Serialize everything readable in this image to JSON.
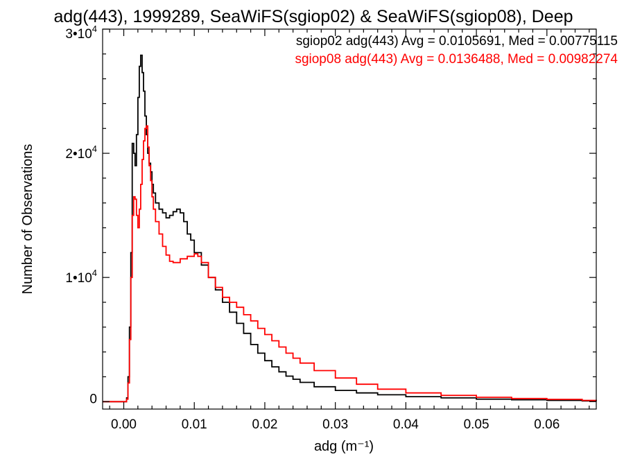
{
  "chart_data": {
    "type": "line",
    "title": "adg(443), 1999289, SeaWiFS(sgiop02) & SeaWiFS(sgiop08), Deep",
    "xlabel": "adg (m⁻¹)",
    "ylabel": "Number of Observations",
    "xlim": [
      -0.003,
      0.067
    ],
    "ylim": [
      -600,
      30000
    ],
    "x_ticks": [
      0,
      0.01,
      0.02,
      0.03,
      0.04,
      0.05,
      0.06
    ],
    "x_tick_labels": [
      "0.00",
      "0.01",
      "0.02",
      "0.03",
      "0.04",
      "0.05",
      "0.06"
    ],
    "y_ticks": [
      0,
      10000,
      20000,
      30000
    ],
    "y_tick_labels": [
      {
        "mant": "0",
        "exp": ""
      },
      {
        "mant": "1•10",
        "exp": "4"
      },
      {
        "mant": "2•10",
        "exp": "4"
      },
      {
        "mant": "3•10",
        "exp": "4"
      }
    ],
    "grid": false,
    "legend_position": "top-right",
    "series": [
      {
        "name": "sgiop02 adg(443) Avg = 0.0105691, Med = 0.00775115",
        "color": "#000000",
        "points": [
          [
            -0.003,
            0
          ],
          [
            0.0,
            0
          ],
          [
            0.0004,
            300
          ],
          [
            0.0006,
            2000
          ],
          [
            0.0008,
            6000
          ],
          [
            0.001,
            12000
          ],
          [
            0.0012,
            20800
          ],
          [
            0.0014,
            20000
          ],
          [
            0.0016,
            19000
          ],
          [
            0.0018,
            21500
          ],
          [
            0.002,
            24500
          ],
          [
            0.0022,
            27000
          ],
          [
            0.0024,
            27900
          ],
          [
            0.0026,
            26500
          ],
          [
            0.0028,
            25000
          ],
          [
            0.003,
            23000
          ],
          [
            0.0032,
            21500
          ],
          [
            0.0034,
            20000
          ],
          [
            0.0036,
            19200
          ],
          [
            0.0038,
            18500
          ],
          [
            0.004,
            17500
          ],
          [
            0.0042,
            16800
          ],
          [
            0.0045,
            16000
          ],
          [
            0.005,
            15500
          ],
          [
            0.0055,
            15200
          ],
          [
            0.006,
            14800
          ],
          [
            0.0065,
            15000
          ],
          [
            0.007,
            15300
          ],
          [
            0.0075,
            15500
          ],
          [
            0.008,
            15200
          ],
          [
            0.0085,
            14500
          ],
          [
            0.009,
            13500
          ],
          [
            0.0095,
            13000
          ],
          [
            0.01,
            12000
          ],
          [
            0.011,
            11000
          ],
          [
            0.012,
            10000
          ],
          [
            0.013,
            9000
          ],
          [
            0.014,
            8000
          ],
          [
            0.015,
            7200
          ],
          [
            0.016,
            6300
          ],
          [
            0.017,
            5500
          ],
          [
            0.018,
            4600
          ],
          [
            0.019,
            3900
          ],
          [
            0.02,
            3300
          ],
          [
            0.021,
            2800
          ],
          [
            0.022,
            2400
          ],
          [
            0.023,
            2050
          ],
          [
            0.024,
            1800
          ],
          [
            0.025,
            1550
          ],
          [
            0.027,
            1200
          ],
          [
            0.03,
            900
          ],
          [
            0.033,
            700
          ],
          [
            0.036,
            550
          ],
          [
            0.04,
            400
          ],
          [
            0.045,
            300
          ],
          [
            0.05,
            200
          ],
          [
            0.055,
            150
          ],
          [
            0.06,
            100
          ],
          [
            0.065,
            60
          ],
          [
            0.067,
            40
          ]
        ]
      },
      {
        "name": "sgiop08 adg(443) Avg = 0.0136488, Med = 0.00982274",
        "color": "#ff0000",
        "points": [
          [
            -0.003,
            0
          ],
          [
            0.0,
            0
          ],
          [
            0.0004,
            200
          ],
          [
            0.0006,
            1500
          ],
          [
            0.0008,
            5000
          ],
          [
            0.001,
            10000
          ],
          [
            0.0012,
            15000
          ],
          [
            0.0014,
            16500
          ],
          [
            0.0016,
            16300
          ],
          [
            0.0018,
            15000
          ],
          [
            0.002,
            14000
          ],
          [
            0.0022,
            15500
          ],
          [
            0.0024,
            17500
          ],
          [
            0.0026,
            19500
          ],
          [
            0.0028,
            21000
          ],
          [
            0.003,
            22000
          ],
          [
            0.0032,
            22200
          ],
          [
            0.0034,
            20500
          ],
          [
            0.0036,
            19000
          ],
          [
            0.0038,
            17800
          ],
          [
            0.004,
            16500
          ],
          [
            0.0042,
            15500
          ],
          [
            0.0045,
            14500
          ],
          [
            0.005,
            13500
          ],
          [
            0.0055,
            12500
          ],
          [
            0.006,
            11800
          ],
          [
            0.0065,
            11300
          ],
          [
            0.007,
            11200
          ],
          [
            0.008,
            11500
          ],
          [
            0.009,
            11700
          ],
          [
            0.01,
            11900
          ],
          [
            0.0105,
            11700
          ],
          [
            0.011,
            11200
          ],
          [
            0.012,
            10000
          ],
          [
            0.013,
            9200
          ],
          [
            0.014,
            8400
          ],
          [
            0.015,
            8000
          ],
          [
            0.016,
            7600
          ],
          [
            0.017,
            7000
          ],
          [
            0.018,
            6500
          ],
          [
            0.019,
            5900
          ],
          [
            0.02,
            5400
          ],
          [
            0.021,
            4900
          ],
          [
            0.022,
            4400
          ],
          [
            0.023,
            3900
          ],
          [
            0.024,
            3500
          ],
          [
            0.025,
            3100
          ],
          [
            0.027,
            2500
          ],
          [
            0.03,
            1900
          ],
          [
            0.033,
            1400
          ],
          [
            0.036,
            1000
          ],
          [
            0.04,
            700
          ],
          [
            0.045,
            500
          ],
          [
            0.05,
            350
          ],
          [
            0.055,
            250
          ],
          [
            0.06,
            180
          ],
          [
            0.065,
            100
          ],
          [
            0.067,
            80
          ]
        ]
      }
    ]
  }
}
